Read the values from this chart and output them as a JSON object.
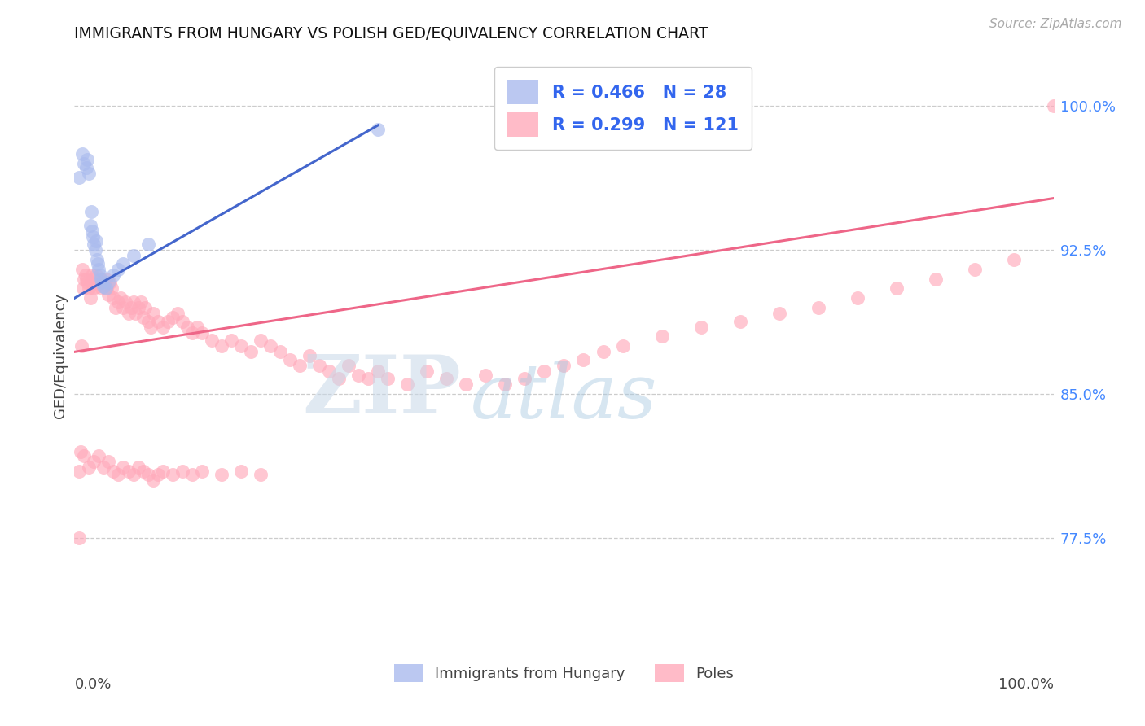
{
  "title": "IMMIGRANTS FROM HUNGARY VS POLISH GED/EQUIVALENCY CORRELATION CHART",
  "source": "Source: ZipAtlas.com",
  "ylabel": "GED/Equivalency",
  "yticks": [
    0.775,
    0.85,
    0.925,
    1.0
  ],
  "ytick_labels": [
    "77.5%",
    "85.0%",
    "92.5%",
    "100.0%"
  ],
  "xmin": 0.0,
  "xmax": 1.0,
  "ymin": 0.715,
  "ymax": 1.025,
  "hungary_color": "#aabbee",
  "poland_color": "#ffaabb",
  "hungary_line_color": "#4466cc",
  "poland_line_color": "#ee6688",
  "watermark_zip": "ZIP",
  "watermark_atlas": "atlas",
  "legend_r1": "R = 0.466   N = 28",
  "legend_r2": "R = 0.299   N = 121",
  "legend_bottom1": "Immigrants from Hungary",
  "legend_bottom2": "Poles",
  "hungary_x": [
    0.005,
    0.008,
    0.01,
    0.012,
    0.013,
    0.015,
    0.016,
    0.017,
    0.018,
    0.019,
    0.02,
    0.021,
    0.022,
    0.023,
    0.024,
    0.025,
    0.026,
    0.027,
    0.028,
    0.03,
    0.032,
    0.035,
    0.04,
    0.045,
    0.05,
    0.06,
    0.075,
    0.31
  ],
  "hungary_y": [
    0.963,
    0.975,
    0.97,
    0.968,
    0.972,
    0.965,
    0.938,
    0.945,
    0.935,
    0.932,
    0.928,
    0.925,
    0.93,
    0.92,
    0.918,
    0.915,
    0.912,
    0.91,
    0.908,
    0.906,
    0.905,
    0.908,
    0.912,
    0.915,
    0.918,
    0.922,
    0.928,
    0.988
  ],
  "poland_x": [
    0.005,
    0.006,
    0.007,
    0.008,
    0.009,
    0.01,
    0.011,
    0.012,
    0.013,
    0.015,
    0.016,
    0.017,
    0.018,
    0.019,
    0.02,
    0.021,
    0.022,
    0.023,
    0.025,
    0.026,
    0.028,
    0.03,
    0.032,
    0.033,
    0.035,
    0.036,
    0.038,
    0.04,
    0.042,
    0.045,
    0.047,
    0.05,
    0.052,
    0.055,
    0.058,
    0.06,
    0.062,
    0.065,
    0.068,
    0.07,
    0.072,
    0.075,
    0.078,
    0.08,
    0.085,
    0.09,
    0.095,
    0.1,
    0.105,
    0.11,
    0.115,
    0.12,
    0.125,
    0.13,
    0.14,
    0.15,
    0.16,
    0.17,
    0.18,
    0.19,
    0.2,
    0.21,
    0.22,
    0.23,
    0.24,
    0.25,
    0.26,
    0.27,
    0.28,
    0.29,
    0.3,
    0.31,
    0.32,
    0.34,
    0.36,
    0.38,
    0.4,
    0.42,
    0.44,
    0.46,
    0.48,
    0.5,
    0.52,
    0.54,
    0.56,
    0.6,
    0.64,
    0.68,
    0.72,
    0.76,
    0.8,
    0.84,
    0.88,
    0.92,
    0.96,
    1.0,
    0.005,
    0.01,
    0.015,
    0.02,
    0.025,
    0.03,
    0.035,
    0.04,
    0.045,
    0.05,
    0.055,
    0.06,
    0.065,
    0.07,
    0.075,
    0.08,
    0.085,
    0.09,
    0.1,
    0.11,
    0.12,
    0.13,
    0.15,
    0.17,
    0.19
  ],
  "poland_y": [
    0.775,
    0.82,
    0.875,
    0.915,
    0.905,
    0.91,
    0.912,
    0.91,
    0.908,
    0.905,
    0.9,
    0.908,
    0.912,
    0.91,
    0.905,
    0.908,
    0.912,
    0.906,
    0.908,
    0.91,
    0.905,
    0.908,
    0.91,
    0.905,
    0.902,
    0.908,
    0.905,
    0.9,
    0.895,
    0.898,
    0.9,
    0.895,
    0.898,
    0.892,
    0.895,
    0.898,
    0.892,
    0.895,
    0.898,
    0.89,
    0.895,
    0.888,
    0.885,
    0.892,
    0.888,
    0.885,
    0.888,
    0.89,
    0.892,
    0.888,
    0.885,
    0.882,
    0.885,
    0.882,
    0.878,
    0.875,
    0.878,
    0.875,
    0.872,
    0.878,
    0.875,
    0.872,
    0.868,
    0.865,
    0.87,
    0.865,
    0.862,
    0.858,
    0.865,
    0.86,
    0.858,
    0.862,
    0.858,
    0.855,
    0.862,
    0.858,
    0.855,
    0.86,
    0.855,
    0.858,
    0.862,
    0.865,
    0.868,
    0.872,
    0.875,
    0.88,
    0.885,
    0.888,
    0.892,
    0.895,
    0.9,
    0.905,
    0.91,
    0.915,
    0.92,
    1.0,
    0.81,
    0.818,
    0.812,
    0.815,
    0.818,
    0.812,
    0.815,
    0.81,
    0.808,
    0.812,
    0.81,
    0.808,
    0.812,
    0.81,
    0.808,
    0.805,
    0.808,
    0.81,
    0.808,
    0.81,
    0.808,
    0.81,
    0.808,
    0.81,
    0.808
  ],
  "hungary_trend_x0": 0.0,
  "hungary_trend_y0": 0.9,
  "hungary_trend_x1": 0.31,
  "hungary_trend_y1": 0.99,
  "poland_trend_x0": 0.0,
  "poland_trend_y0": 0.872,
  "poland_trend_x1": 1.0,
  "poland_trend_y1": 0.952
}
